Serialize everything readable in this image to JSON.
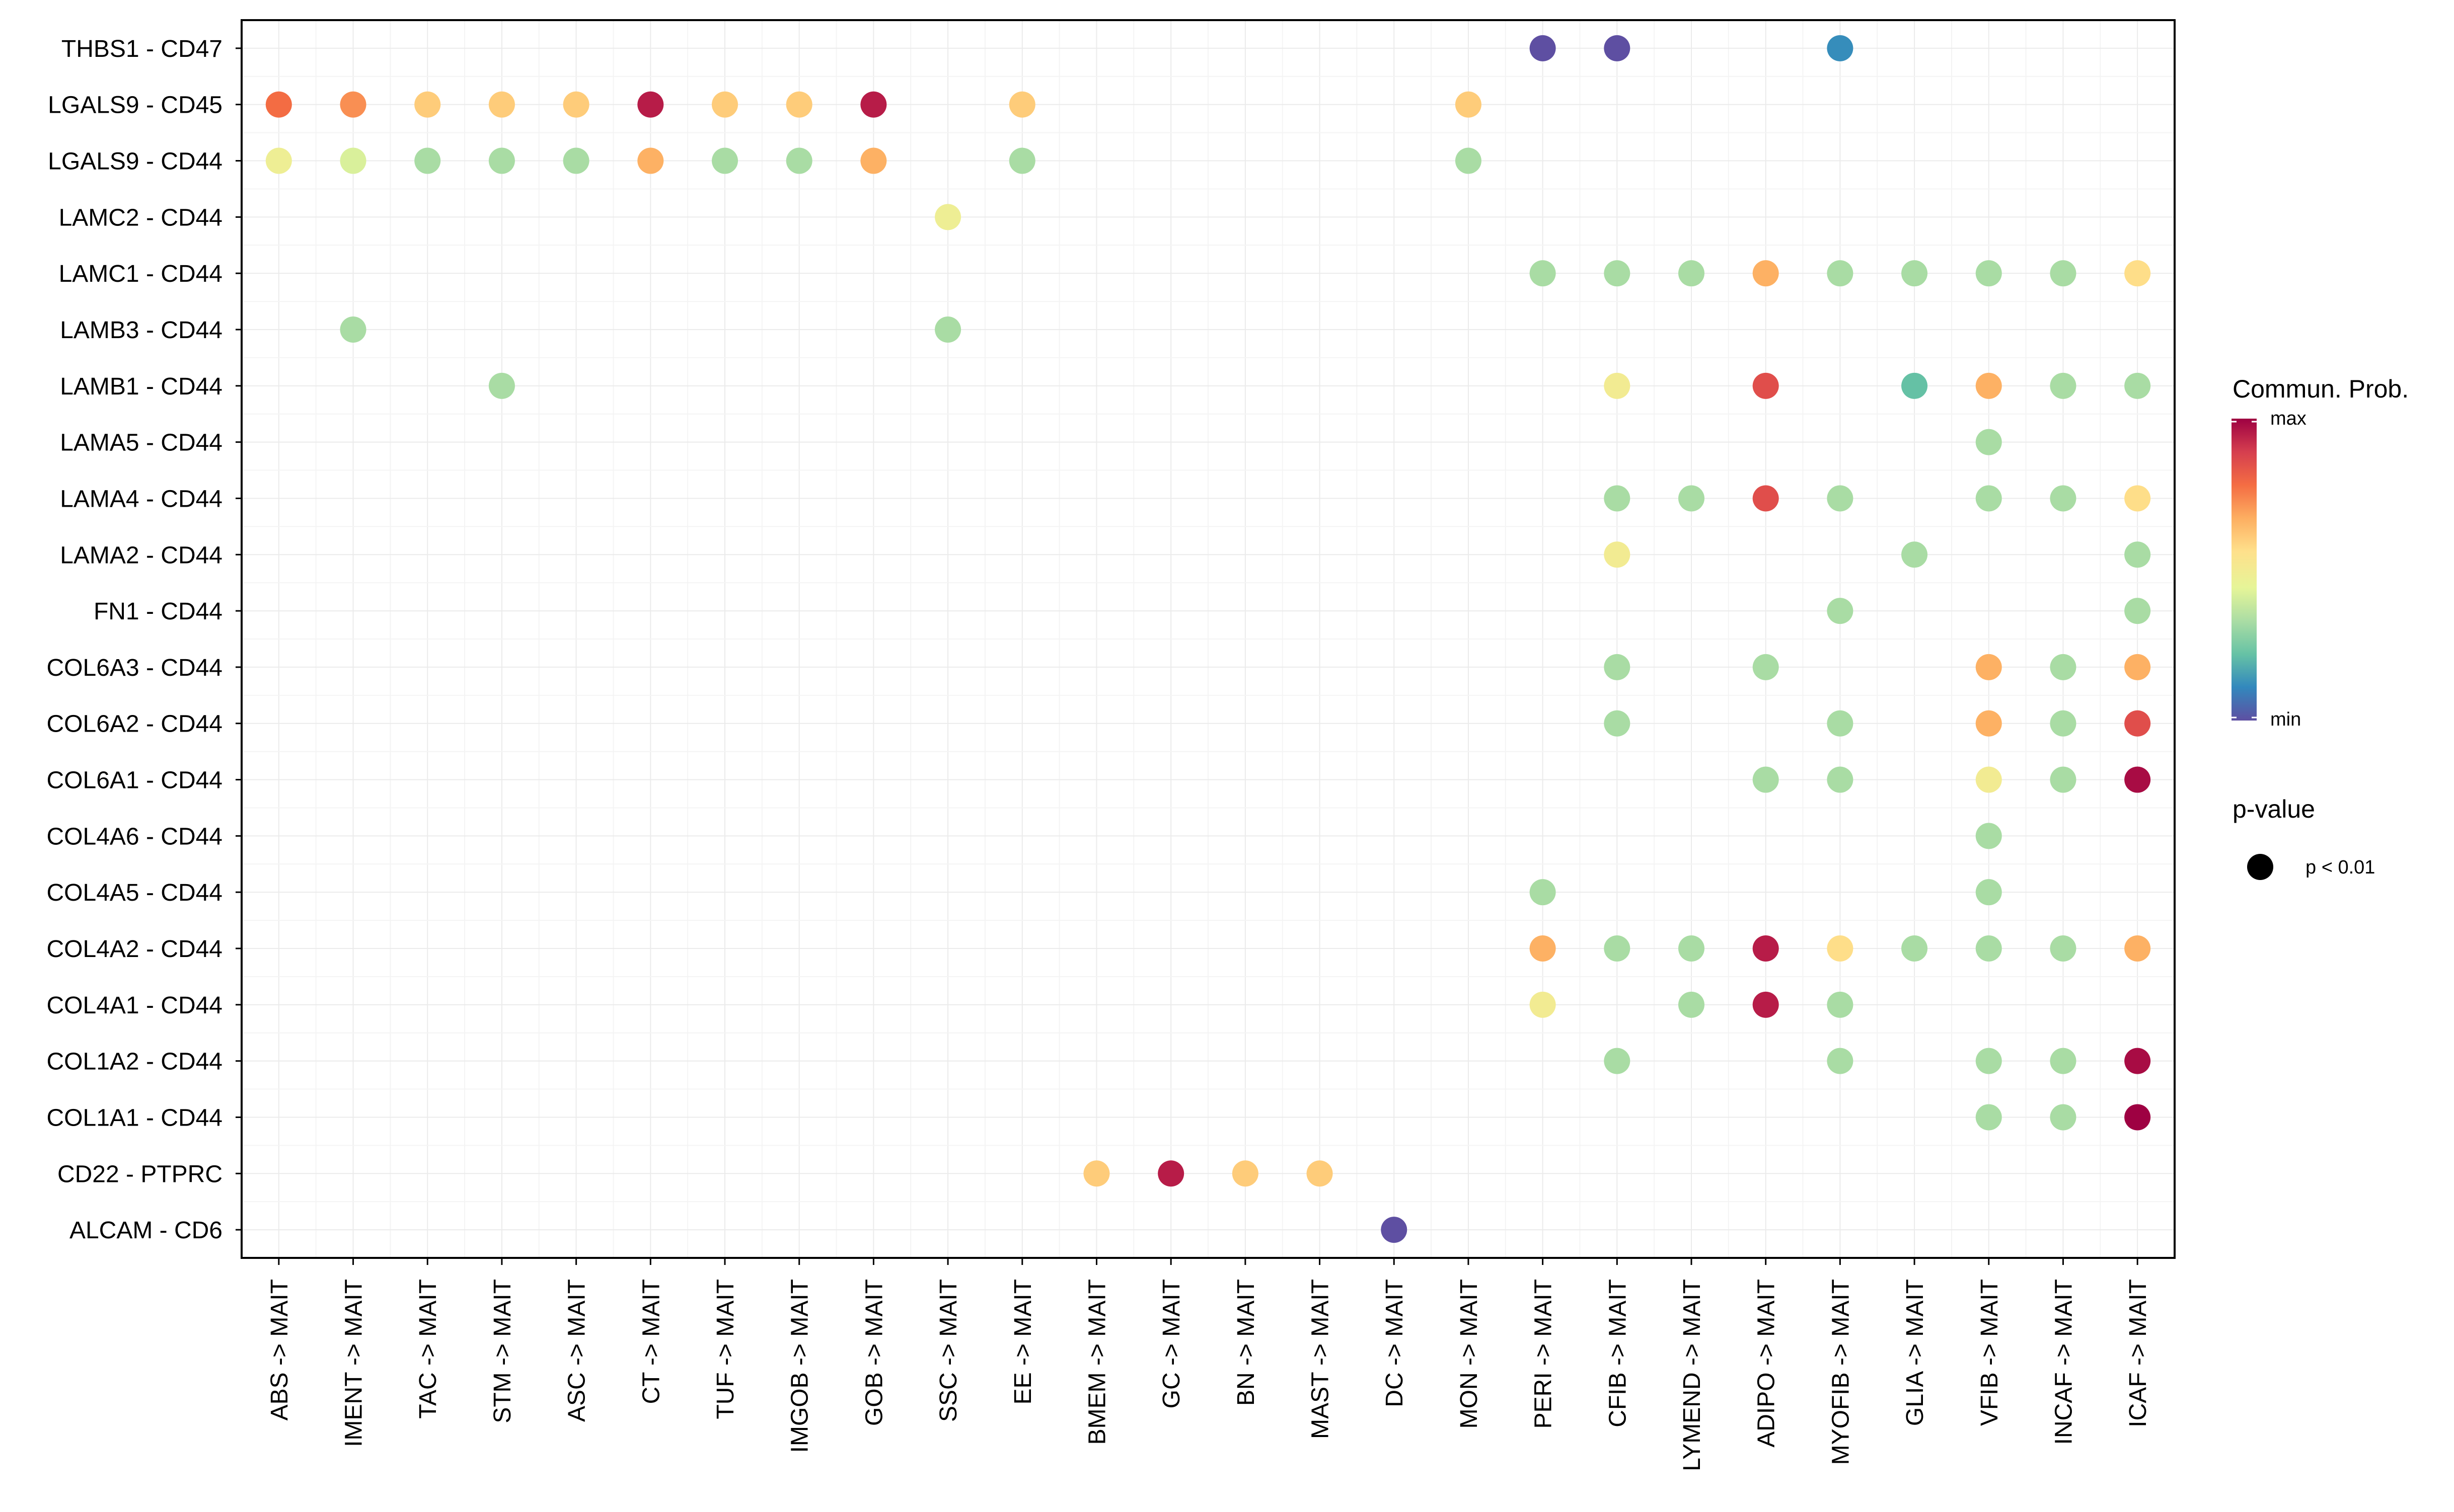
{
  "chart_data": {
    "type": "dot",
    "x_categories": [
      "ABS -> MAIT",
      "IMENT -> MAIT",
      "TAC -> MAIT",
      "STM -> MAIT",
      "ASC -> MAIT",
      "CT -> MAIT",
      "TUF -> MAIT",
      "IMGOB -> MAIT",
      "GOB -> MAIT",
      "SSC -> MAIT",
      "EE -> MAIT",
      "BMEM -> MAIT",
      "GC -> MAIT",
      "BN -> MAIT",
      "MAST -> MAIT",
      "DC -> MAIT",
      "MON -> MAIT",
      "PERI -> MAIT",
      "CFIB -> MAIT",
      "LYMEND -> MAIT",
      "ADIPO -> MAIT",
      "MYOFIB -> MAIT",
      "GLIA -> MAIT",
      "VFIB -> MAIT",
      "INCAF -> MAIT",
      "ICAF -> MAIT"
    ],
    "y_categories": [
      "THBS1 - CD47",
      "LGALS9 - CD45",
      "LGALS9 - CD44",
      "LAMC2 - CD44",
      "LAMC1 - CD44",
      "LAMB3 - CD44",
      "LAMB1 - CD44",
      "LAMA5 - CD44",
      "LAMA4 - CD44",
      "LAMA2 - CD44",
      "FN1 - CD44",
      "COL6A3 - CD44",
      "COL6A2 - CD44",
      "COL6A1 - CD44",
      "COL4A6 - CD44",
      "COL4A5 - CD44",
      "COL4A2 - CD44",
      "COL4A1 - CD44",
      "COL1A2 - CD44",
      "COL1A1 - CD44",
      "CD22 - PTPRC",
      "ALCAM - CD6"
    ],
    "value_scale": "relative communication probability, 0 = min, 1 = max",
    "points": [
      {
        "y": "THBS1 - CD47",
        "x": "PERI -> MAIT",
        "value": 0.0
      },
      {
        "y": "THBS1 - CD47",
        "x": "CFIB -> MAIT",
        "value": 0.0
      },
      {
        "y": "THBS1 - CD47",
        "x": "MYOFIB -> MAIT",
        "value": 0.12
      },
      {
        "y": "LGALS9 - CD45",
        "x": "ABS -> MAIT",
        "value": 0.78
      },
      {
        "y": "LGALS9 - CD45",
        "x": "IMENT -> MAIT",
        "value": 0.72
      },
      {
        "y": "LGALS9 - CD45",
        "x": "TAC -> MAIT",
        "value": 0.6
      },
      {
        "y": "LGALS9 - CD45",
        "x": "STM -> MAIT",
        "value": 0.6
      },
      {
        "y": "LGALS9 - CD45",
        "x": "ASC -> MAIT",
        "value": 0.6
      },
      {
        "y": "LGALS9 - CD45",
        "x": "CT -> MAIT",
        "value": 0.95
      },
      {
        "y": "LGALS9 - CD45",
        "x": "TUF -> MAIT",
        "value": 0.6
      },
      {
        "y": "LGALS9 - CD45",
        "x": "IMGOB -> MAIT",
        "value": 0.6
      },
      {
        "y": "LGALS9 - CD45",
        "x": "GOB -> MAIT",
        "value": 0.95
      },
      {
        "y": "LGALS9 - CD45",
        "x": "EE -> MAIT",
        "value": 0.6
      },
      {
        "y": "LGALS9 - CD45",
        "x": "MON -> MAIT",
        "value": 0.6
      },
      {
        "y": "LGALS9 - CD44",
        "x": "ABS -> MAIT",
        "value": 0.48
      },
      {
        "y": "LGALS9 - CD44",
        "x": "IMENT -> MAIT",
        "value": 0.42
      },
      {
        "y": "LGALS9 - CD44",
        "x": "TAC -> MAIT",
        "value": 0.33
      },
      {
        "y": "LGALS9 - CD44",
        "x": "STM -> MAIT",
        "value": 0.33
      },
      {
        "y": "LGALS9 - CD44",
        "x": "ASC -> MAIT",
        "value": 0.33
      },
      {
        "y": "LGALS9 - CD44",
        "x": "CT -> MAIT",
        "value": 0.66
      },
      {
        "y": "LGALS9 - CD44",
        "x": "TUF -> MAIT",
        "value": 0.33
      },
      {
        "y": "LGALS9 - CD44",
        "x": "IMGOB -> MAIT",
        "value": 0.33
      },
      {
        "y": "LGALS9 - CD44",
        "x": "GOB -> MAIT",
        "value": 0.66
      },
      {
        "y": "LGALS9 - CD44",
        "x": "EE -> MAIT",
        "value": 0.33
      },
      {
        "y": "LGALS9 - CD44",
        "x": "MON -> MAIT",
        "value": 0.33
      },
      {
        "y": "LAMC2 - CD44",
        "x": "SSC -> MAIT",
        "value": 0.48
      },
      {
        "y": "LAMC1 - CD44",
        "x": "PERI -> MAIT",
        "value": 0.33
      },
      {
        "y": "LAMC1 - CD44",
        "x": "CFIB -> MAIT",
        "value": 0.33
      },
      {
        "y": "LAMC1 - CD44",
        "x": "LYMEND -> MAIT",
        "value": 0.33
      },
      {
        "y": "LAMC1 - CD44",
        "x": "ADIPO -> MAIT",
        "value": 0.66
      },
      {
        "y": "LAMC1 - CD44",
        "x": "MYOFIB -> MAIT",
        "value": 0.33
      },
      {
        "y": "LAMC1 - CD44",
        "x": "GLIA -> MAIT",
        "value": 0.33
      },
      {
        "y": "LAMC1 - CD44",
        "x": "VFIB -> MAIT",
        "value": 0.33
      },
      {
        "y": "LAMC1 - CD44",
        "x": "INCAF -> MAIT",
        "value": 0.33
      },
      {
        "y": "LAMC1 - CD44",
        "x": "ICAF -> MAIT",
        "value": 0.56
      },
      {
        "y": "LAMB3 - CD44",
        "x": "IMENT -> MAIT",
        "value": 0.33
      },
      {
        "y": "LAMB3 - CD44",
        "x": "SSC -> MAIT",
        "value": 0.33
      },
      {
        "y": "LAMB1 - CD44",
        "x": "STM -> MAIT",
        "value": 0.33
      },
      {
        "y": "LAMB1 - CD44",
        "x": "CFIB -> MAIT",
        "value": 0.5
      },
      {
        "y": "LAMB1 - CD44",
        "x": "ADIPO -> MAIT",
        "value": 0.85
      },
      {
        "y": "LAMB1 - CD44",
        "x": "GLIA -> MAIT",
        "value": 0.22
      },
      {
        "y": "LAMB1 - CD44",
        "x": "VFIB -> MAIT",
        "value": 0.66
      },
      {
        "y": "LAMB1 - CD44",
        "x": "INCAF -> MAIT",
        "value": 0.33
      },
      {
        "y": "LAMB1 - CD44",
        "x": "ICAF -> MAIT",
        "value": 0.33
      },
      {
        "y": "LAMA5 - CD44",
        "x": "VFIB -> MAIT",
        "value": 0.33
      },
      {
        "y": "LAMA4 - CD44",
        "x": "CFIB -> MAIT",
        "value": 0.33
      },
      {
        "y": "LAMA4 - CD44",
        "x": "LYMEND -> MAIT",
        "value": 0.33
      },
      {
        "y": "LAMA4 - CD44",
        "x": "ADIPO -> MAIT",
        "value": 0.85
      },
      {
        "y": "LAMA4 - CD44",
        "x": "MYOFIB -> MAIT",
        "value": 0.33
      },
      {
        "y": "LAMA4 - CD44",
        "x": "VFIB -> MAIT",
        "value": 0.33
      },
      {
        "y": "LAMA4 - CD44",
        "x": "INCAF -> MAIT",
        "value": 0.33
      },
      {
        "y": "LAMA4 - CD44",
        "x": "ICAF -> MAIT",
        "value": 0.56
      },
      {
        "y": "LAMA2 - CD44",
        "x": "CFIB -> MAIT",
        "value": 0.5
      },
      {
        "y": "LAMA2 - CD44",
        "x": "GLIA -> MAIT",
        "value": 0.33
      },
      {
        "y": "LAMA2 - CD44",
        "x": "ICAF -> MAIT",
        "value": 0.33
      },
      {
        "y": "FN1 - CD44",
        "x": "MYOFIB -> MAIT",
        "value": 0.33
      },
      {
        "y": "FN1 - CD44",
        "x": "ICAF -> MAIT",
        "value": 0.33
      },
      {
        "y": "COL6A3 - CD44",
        "x": "CFIB -> MAIT",
        "value": 0.33
      },
      {
        "y": "COL6A3 - CD44",
        "x": "ADIPO -> MAIT",
        "value": 0.33
      },
      {
        "y": "COL6A3 - CD44",
        "x": "VFIB -> MAIT",
        "value": 0.66
      },
      {
        "y": "COL6A3 - CD44",
        "x": "INCAF -> MAIT",
        "value": 0.33
      },
      {
        "y": "COL6A3 - CD44",
        "x": "ICAF -> MAIT",
        "value": 0.66
      },
      {
        "y": "COL6A2 - CD44",
        "x": "CFIB -> MAIT",
        "value": 0.33
      },
      {
        "y": "COL6A2 - CD44",
        "x": "MYOFIB -> MAIT",
        "value": 0.33
      },
      {
        "y": "COL6A2 - CD44",
        "x": "VFIB -> MAIT",
        "value": 0.66
      },
      {
        "y": "COL6A2 - CD44",
        "x": "INCAF -> MAIT",
        "value": 0.33
      },
      {
        "y": "COL6A2 - CD44",
        "x": "ICAF -> MAIT",
        "value": 0.85
      },
      {
        "y": "COL6A1 - CD44",
        "x": "ADIPO -> MAIT",
        "value": 0.33
      },
      {
        "y": "COL6A1 - CD44",
        "x": "MYOFIB -> MAIT",
        "value": 0.33
      },
      {
        "y": "COL6A1 - CD44",
        "x": "VFIB -> MAIT",
        "value": 0.5
      },
      {
        "y": "COL6A1 - CD44",
        "x": "INCAF -> MAIT",
        "value": 0.33
      },
      {
        "y": "COL6A1 - CD44",
        "x": "ICAF -> MAIT",
        "value": 0.98
      },
      {
        "y": "COL4A6 - CD44",
        "x": "VFIB -> MAIT",
        "value": 0.33
      },
      {
        "y": "COL4A5 - CD44",
        "x": "PERI -> MAIT",
        "value": 0.33
      },
      {
        "y": "COL4A5 - CD44",
        "x": "VFIB -> MAIT",
        "value": 0.33
      },
      {
        "y": "COL4A2 - CD44",
        "x": "PERI -> MAIT",
        "value": 0.66
      },
      {
        "y": "COL4A2 - CD44",
        "x": "CFIB -> MAIT",
        "value": 0.33
      },
      {
        "y": "COL4A2 - CD44",
        "x": "LYMEND -> MAIT",
        "value": 0.33
      },
      {
        "y": "COL4A2 - CD44",
        "x": "ADIPO -> MAIT",
        "value": 0.95
      },
      {
        "y": "COL4A2 - CD44",
        "x": "MYOFIB -> MAIT",
        "value": 0.56
      },
      {
        "y": "COL4A2 - CD44",
        "x": "GLIA -> MAIT",
        "value": 0.33
      },
      {
        "y": "COL4A2 - CD44",
        "x": "VFIB -> MAIT",
        "value": 0.33
      },
      {
        "y": "COL4A2 - CD44",
        "x": "INCAF -> MAIT",
        "value": 0.33
      },
      {
        "y": "COL4A2 - CD44",
        "x": "ICAF -> MAIT",
        "value": 0.66
      },
      {
        "y": "COL4A1 - CD44",
        "x": "PERI -> MAIT",
        "value": 0.5
      },
      {
        "y": "COL4A1 - CD44",
        "x": "LYMEND -> MAIT",
        "value": 0.33
      },
      {
        "y": "COL4A1 - CD44",
        "x": "ADIPO -> MAIT",
        "value": 0.95
      },
      {
        "y": "COL4A1 - CD44",
        "x": "MYOFIB -> MAIT",
        "value": 0.33
      },
      {
        "y": "COL1A2 - CD44",
        "x": "CFIB -> MAIT",
        "value": 0.33
      },
      {
        "y": "COL1A2 - CD44",
        "x": "MYOFIB -> MAIT",
        "value": 0.33
      },
      {
        "y": "COL1A2 - CD44",
        "x": "VFIB -> MAIT",
        "value": 0.33
      },
      {
        "y": "COL1A2 - CD44",
        "x": "INCAF -> MAIT",
        "value": 0.33
      },
      {
        "y": "COL1A2 - CD44",
        "x": "ICAF -> MAIT",
        "value": 0.98
      },
      {
        "y": "COL1A1 - CD44",
        "x": "VFIB -> MAIT",
        "value": 0.33
      },
      {
        "y": "COL1A1 - CD44",
        "x": "INCAF -> MAIT",
        "value": 0.33
      },
      {
        "y": "COL1A1 - CD44",
        "x": "ICAF -> MAIT",
        "value": 1.0
      },
      {
        "y": "CD22 - PTPRC",
        "x": "BMEM -> MAIT",
        "value": 0.6
      },
      {
        "y": "CD22 - PTPRC",
        "x": "GC -> MAIT",
        "value": 0.95
      },
      {
        "y": "CD22 - PTPRC",
        "x": "BN -> MAIT",
        "value": 0.6
      },
      {
        "y": "CD22 - PTPRC",
        "x": "MAST -> MAIT",
        "value": 0.6
      },
      {
        "y": "ALCAM - CD6",
        "x": "DC -> MAIT",
        "value": 0.0
      }
    ],
    "legend": {
      "color_title": "Commun. Prob.",
      "max_label": "max",
      "min_label": "min",
      "size_title": "p-value",
      "size_label": "p < 0.01",
      "placement": "right"
    },
    "grid": true,
    "palette": [
      "#5E4FA2",
      "#3288BD",
      "#66C2A5",
      "#ABDDA4",
      "#E6F598",
      "#FEE08B",
      "#FDAE61",
      "#F46D43",
      "#D53E4F",
      "#9E0142"
    ]
  }
}
